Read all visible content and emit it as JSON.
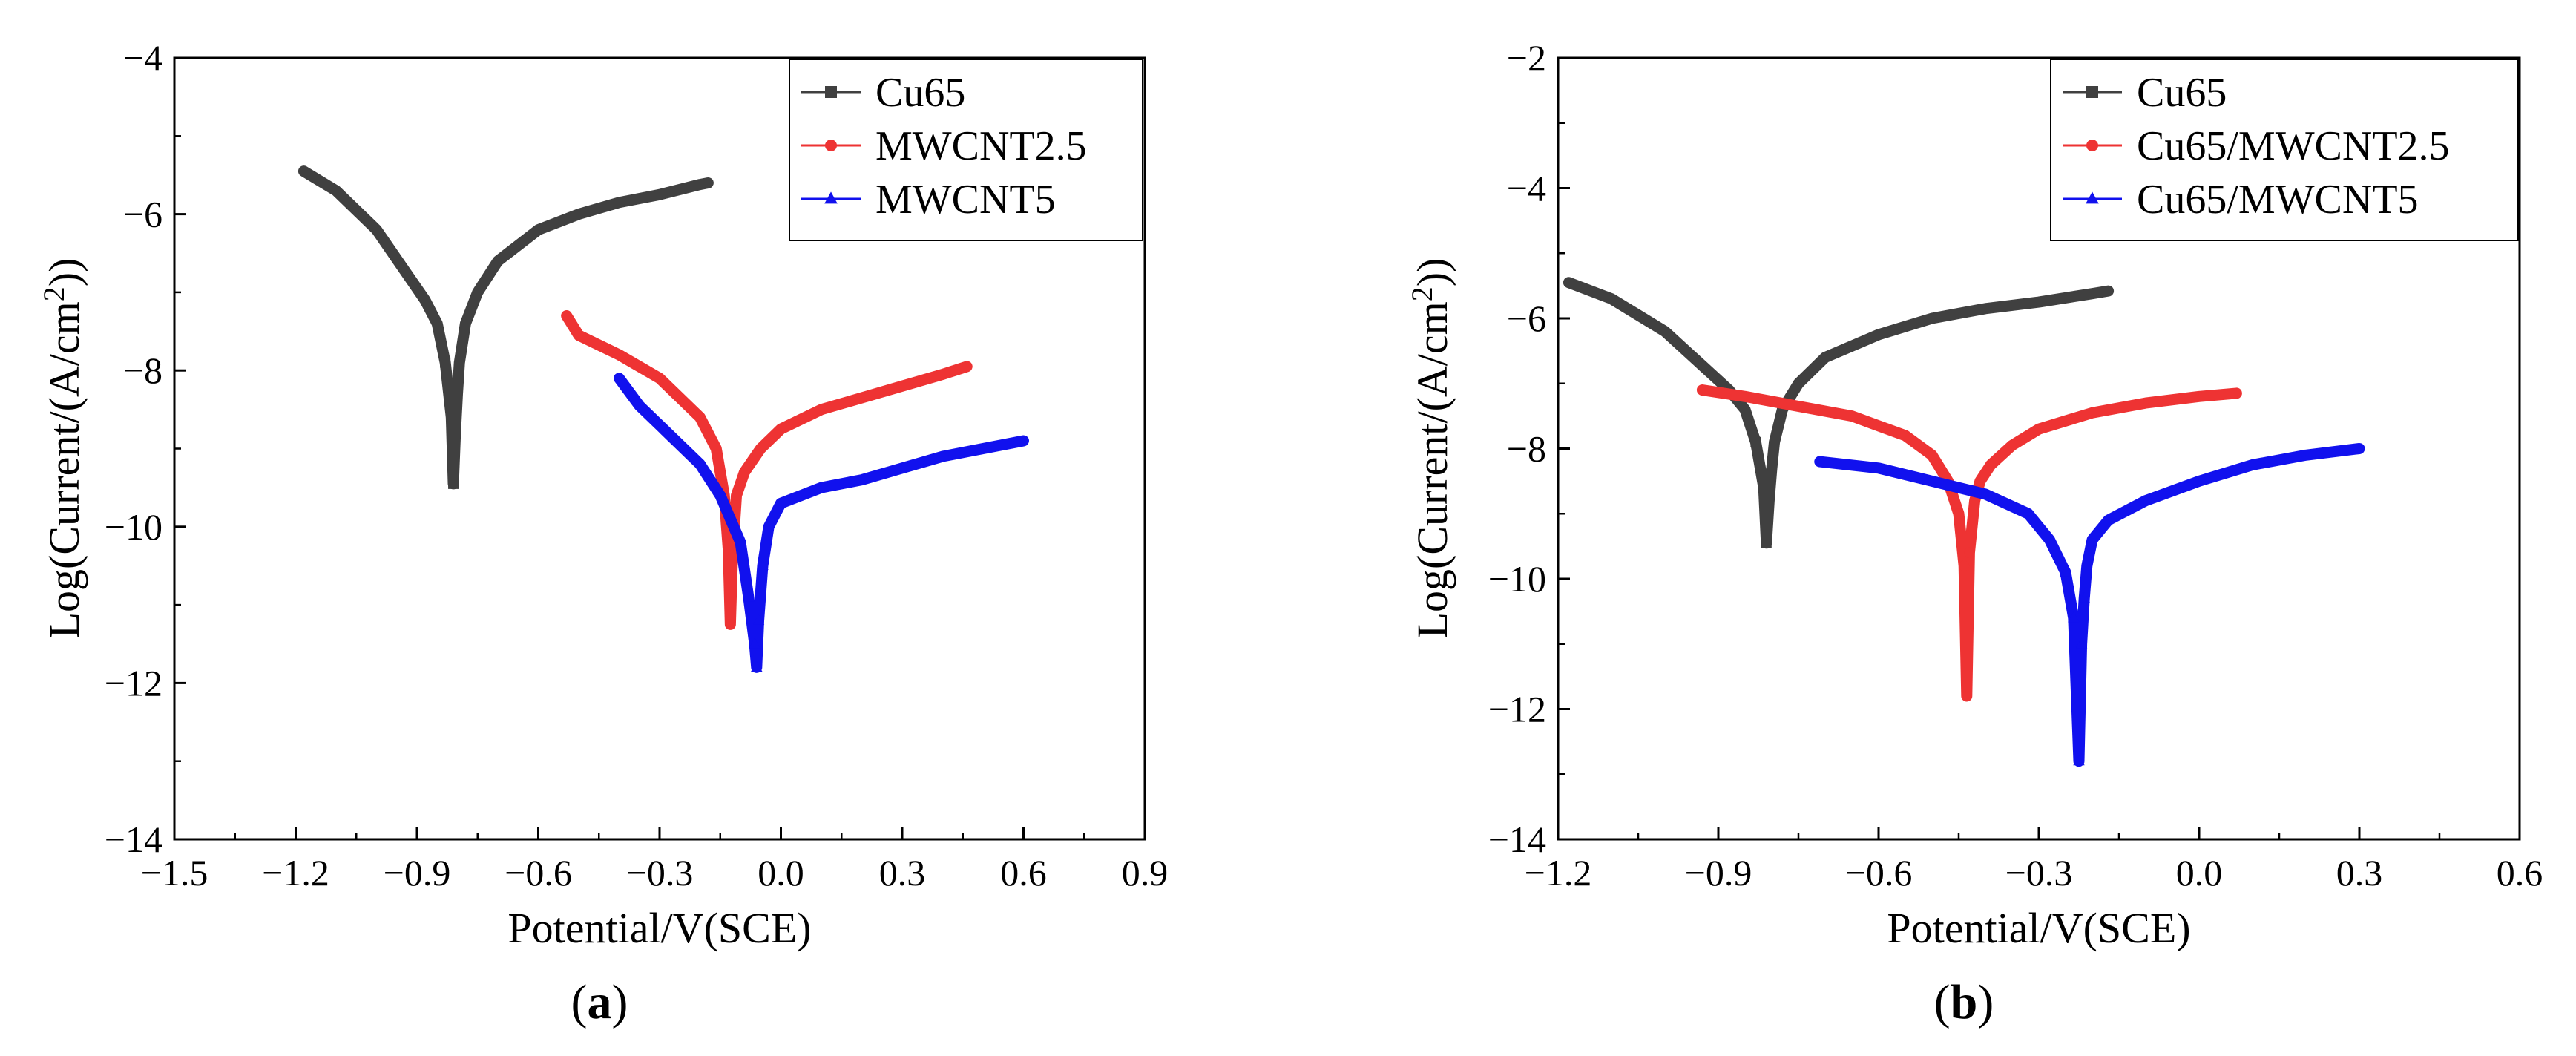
{
  "colors": {
    "Cu65": "#404040",
    "MWCNT2.5": "#ee3333",
    "MWCNT5": "#1111ee"
  },
  "chart_data": [
    {
      "type": "line",
      "panel_label": "(a)",
      "xlabel": "Potential/V(SCE)",
      "ylabel": "Log(Current/(A/cm2))",
      "xlim": [
        -1.5,
        0.9
      ],
      "ylim": [
        -14,
        -4
      ],
      "xticks": [
        -1.5,
        -1.2,
        -0.9,
        -0.6,
        -0.3,
        0.0,
        0.3,
        0.6,
        0.9
      ],
      "xtick_labels": [
        "−1.5",
        "−1.2",
        "−0.9",
        "−0.6",
        "−0.3",
        "0.0",
        "0.3",
        "0.6",
        "0.9"
      ],
      "yticks": [
        -14,
        -12,
        -10,
        -8,
        -6,
        -4
      ],
      "ytick_labels": [
        "−14",
        "−12",
        "−10",
        "−8",
        "−6",
        "−4"
      ],
      "legend_position": "top-right",
      "series": [
        {
          "name": "Cu65",
          "color_key": "Cu65",
          "marker": "square",
          "x": [
            -1.18,
            -1.1,
            -1.0,
            -0.92,
            -0.88,
            -0.85,
            -0.83,
            -0.815,
            -0.81,
            -0.805,
            -0.8,
            -0.795,
            -0.78,
            -0.75,
            -0.7,
            -0.6,
            -0.5,
            -0.4,
            -0.3,
            -0.2,
            -0.18
          ],
          "y": [
            -5.45,
            -5.7,
            -6.2,
            -6.8,
            -7.1,
            -7.4,
            -7.9,
            -8.6,
            -9.45,
            -8.8,
            -8.3,
            -7.9,
            -7.4,
            -7.0,
            -6.6,
            -6.2,
            -6.0,
            -5.85,
            -5.75,
            -5.62,
            -5.6
          ]
        },
        {
          "name": "MWCNT2.5",
          "color_key": "MWCNT2.5",
          "marker": "circle",
          "x": [
            -0.53,
            -0.5,
            -0.4,
            -0.3,
            -0.2,
            -0.16,
            -0.14,
            -0.13,
            -0.125,
            -0.12,
            -0.11,
            -0.09,
            -0.05,
            0.0,
            0.1,
            0.2,
            0.3,
            0.4,
            0.46
          ],
          "y": [
            -7.3,
            -7.55,
            -7.8,
            -8.1,
            -8.6,
            -9.0,
            -9.6,
            -10.3,
            -11.25,
            -10.4,
            -9.6,
            -9.3,
            -9.0,
            -8.75,
            -8.5,
            -8.35,
            -8.2,
            -8.05,
            -7.95
          ]
        },
        {
          "name": "MWCNT5",
          "color_key": "MWCNT5",
          "marker": "triangle",
          "x": [
            -0.4,
            -0.35,
            -0.3,
            -0.2,
            -0.15,
            -0.1,
            -0.08,
            -0.065,
            -0.06,
            -0.055,
            -0.045,
            -0.03,
            0.0,
            0.1,
            0.2,
            0.3,
            0.4,
            0.5,
            0.6
          ],
          "y": [
            -8.1,
            -8.45,
            -8.7,
            -9.2,
            -9.6,
            -10.2,
            -10.9,
            -11.5,
            -11.8,
            -11.2,
            -10.5,
            -10.0,
            -9.7,
            -9.5,
            -9.4,
            -9.25,
            -9.1,
            -9.0,
            -8.9
          ]
        }
      ]
    },
    {
      "type": "line",
      "panel_label": "(b)",
      "xlabel": "Potential/V(SCE)",
      "ylabel": "Log(Current/(A/cm2))",
      "xlim": [
        -1.2,
        0.6
      ],
      "ylim": [
        -14,
        -2
      ],
      "xticks": [
        -1.2,
        -0.9,
        -0.6,
        -0.3,
        0.0,
        0.3,
        0.6
      ],
      "xtick_labels": [
        "−1.2",
        "−0.9",
        "−0.6",
        "−0.3",
        "0.0",
        "0.3",
        "0.6"
      ],
      "yticks": [
        -14,
        -12,
        -10,
        -8,
        -6,
        -4,
        -2
      ],
      "ytick_labels": [
        "−14",
        "−12",
        "−10",
        "−8",
        "−6",
        "−4",
        "−2"
      ],
      "legend_position": "top-right",
      "series": [
        {
          "name": "Cu65",
          "color_key": "Cu65",
          "marker": "square",
          "x": [
            -1.18,
            -1.1,
            -1.0,
            -0.92,
            -0.88,
            -0.85,
            -0.83,
            -0.815,
            -0.81,
            -0.805,
            -0.8,
            -0.795,
            -0.78,
            -0.75,
            -0.7,
            -0.6,
            -0.5,
            -0.4,
            -0.3,
            -0.2,
            -0.17
          ],
          "y": [
            -5.45,
            -5.7,
            -6.2,
            -6.8,
            -7.1,
            -7.4,
            -7.9,
            -8.6,
            -9.45,
            -8.8,
            -8.3,
            -7.9,
            -7.4,
            -7.0,
            -6.6,
            -6.25,
            -6.0,
            -5.85,
            -5.75,
            -5.62,
            -5.58
          ]
        },
        {
          "name": "Cu65/MWCNT2.5",
          "color_key": "MWCNT2.5",
          "marker": "circle",
          "x": [
            -0.93,
            -0.85,
            -0.75,
            -0.65,
            -0.55,
            -0.5,
            -0.47,
            -0.45,
            -0.44,
            -0.435,
            -0.43,
            -0.42,
            -0.41,
            -0.39,
            -0.35,
            -0.3,
            -0.2,
            -0.1,
            0.0,
            0.07
          ],
          "y": [
            -7.1,
            -7.2,
            -7.35,
            -7.5,
            -7.8,
            -8.1,
            -8.5,
            -9.0,
            -9.8,
            -11.8,
            -9.6,
            -8.8,
            -8.5,
            -8.25,
            -7.95,
            -7.7,
            -7.45,
            -7.3,
            -7.2,
            -7.15
          ]
        },
        {
          "name": "Cu65/MWCNT5",
          "color_key": "MWCNT5",
          "marker": "triangle",
          "x": [
            -0.71,
            -0.6,
            -0.5,
            -0.4,
            -0.32,
            -0.28,
            -0.25,
            -0.235,
            -0.225,
            -0.22,
            -0.215,
            -0.21,
            -0.2,
            -0.17,
            -0.1,
            0.0,
            0.1,
            0.2,
            0.3
          ],
          "y": [
            -8.2,
            -8.3,
            -8.5,
            -8.7,
            -9.0,
            -9.4,
            -9.9,
            -10.6,
            -12.8,
            -11.0,
            -10.3,
            -9.8,
            -9.4,
            -9.1,
            -8.8,
            -8.5,
            -8.25,
            -8.1,
            -8.0
          ]
        }
      ]
    }
  ]
}
